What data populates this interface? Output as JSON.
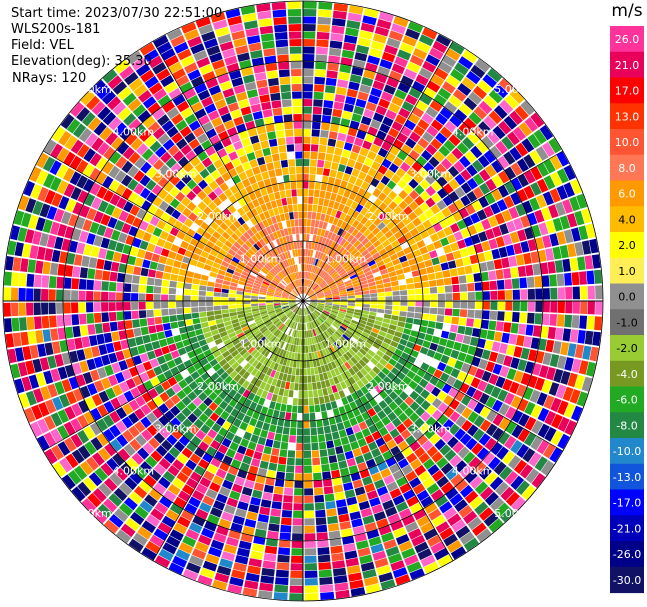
{
  "info": {
    "start_time": "Start time: 2023/07/30 22:51:00",
    "instrument": "WLS200s-181",
    "field": "Field: VEL",
    "elevation": "Elevation(deg): 35.30",
    "nrays": "NRays: 120"
  },
  "colorbar": {
    "unit": "m/s",
    "labels": [
      "26.0",
      "21.0",
      "17.0",
      "13.0",
      "10.0",
      "8.0",
      "6.0",
      "4.0",
      "2.0",
      "1.0",
      "0.0",
      "-1.0",
      "-2.0",
      "-4.0",
      "-6.0",
      "-8.0",
      "-10.0",
      "-13.0",
      "-17.0",
      "-21.0",
      "-26.0",
      "-30.0"
    ],
    "colors": [
      "#ff3399",
      "#e8005a",
      "#ff0000",
      "#ff3300",
      "#ff5533",
      "#ff7755",
      "#ff9900",
      "#ffbb00",
      "#ffff00",
      "#ffee55",
      "#909090",
      "#707070",
      "#99cc33",
      "#779922",
      "#22aa22",
      "#228844",
      "#2288cc",
      "#1155dd",
      "#0000ff",
      "#0000bb",
      "#000088",
      "#111166"
    ]
  },
  "chart_data": {
    "type": "ppi",
    "field": "VEL",
    "units": "m/s",
    "elevation_deg": 35.3,
    "nrays": 120,
    "vmin": -30.0,
    "vmax": 26.0,
    "max_range_km": 5.0,
    "range_ring_labels": [
      "1.00km",
      "2.00km",
      "3.00km",
      "4.00km",
      "5.00km"
    ]
  }
}
